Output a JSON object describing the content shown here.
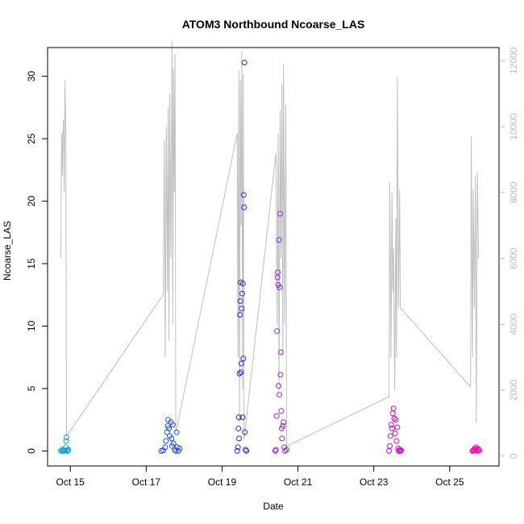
{
  "chart_data": {
    "type": "scatter",
    "title": "ATOM3 Northbound Ncoarse_LAS",
    "xlabel": "Date",
    "ylabel": "Ncoarse_LAS",
    "x_ticks": [
      {
        "label": "Oct 15",
        "day": 15
      },
      {
        "label": "Oct 17",
        "day": 17
      },
      {
        "label": "Oct 19",
        "day": 19
      },
      {
        "label": "Oct 21",
        "day": 21
      },
      {
        "label": "Oct 23",
        "day": 23
      },
      {
        "label": "Oct 25",
        "day": 25
      }
    ],
    "xlim": [
      14.4,
      26.3
    ],
    "ylim": [
      -1.2,
      32.3
    ],
    "yticks": [
      0,
      5,
      10,
      15,
      20,
      25,
      30
    ],
    "y2lim": [
      -300,
      12400
    ],
    "y2ticks": [
      0,
      2000,
      4000,
      6000,
      8000,
      10000,
      12000
    ],
    "secondary_line_color": "#bebebe",
    "series": [
      {
        "color": "#0ea5e0",
        "points": [
          [
            14.75,
            0.0
          ],
          [
            14.78,
            0.05
          ],
          [
            14.8,
            0.1
          ],
          [
            14.82,
            0.0
          ],
          [
            14.84,
            0.02
          ],
          [
            14.86,
            0.05
          ],
          [
            14.88,
            0.3
          ],
          [
            14.89,
            0.8
          ],
          [
            14.9,
            1.1
          ],
          [
            14.91,
            0.0
          ],
          [
            14.92,
            0.05
          ],
          [
            14.93,
            0.0
          ],
          [
            14.95,
            0.1
          ]
        ]
      },
      {
        "color": "#1a4ef0",
        "points": [
          [
            17.4,
            0.0
          ],
          [
            17.45,
            0.05
          ],
          [
            17.5,
            0.3
          ],
          [
            17.52,
            0.8
          ],
          [
            17.55,
            1.5
          ],
          [
            17.57,
            2.0
          ],
          [
            17.58,
            2.5
          ],
          [
            17.6,
            1.8
          ],
          [
            17.62,
            1.2
          ],
          [
            17.65,
            2.3
          ],
          [
            17.67,
            1.0
          ],
          [
            17.68,
            0.4
          ],
          [
            17.7,
            2.1
          ],
          [
            17.72,
            0.6
          ],
          [
            17.75,
            0.1
          ],
          [
            17.78,
            0.0
          ],
          [
            17.8,
            1.5
          ],
          [
            17.82,
            0.3
          ],
          [
            17.85,
            0.0
          ],
          [
            17.88,
            0.2
          ]
        ]
      },
      {
        "color": "#2a2ae0",
        "points": [
          [
            19.4,
            0.0
          ],
          [
            19.42,
            0.3
          ],
          [
            19.43,
            1.8
          ],
          [
            19.44,
            2.7
          ],
          [
            19.45,
            1.0
          ],
          [
            19.46,
            6.2
          ],
          [
            19.47,
            10.9
          ],
          [
            19.48,
            12.0
          ],
          [
            19.49,
            13.5
          ],
          [
            19.5,
            6.3
          ],
          [
            19.51,
            7.0
          ],
          [
            19.52,
            11.4
          ],
          [
            19.53,
            12.6
          ],
          [
            19.54,
            2.7
          ],
          [
            19.55,
            13.4
          ],
          [
            19.56,
            7.4
          ],
          [
            19.57,
            20.5
          ],
          [
            19.58,
            19.5
          ],
          [
            19.59,
            31.1
          ],
          [
            19.6,
            1.5
          ],
          [
            19.62,
            0.1
          ],
          [
            19.64,
            0.0
          ]
        ]
      },
      {
        "color": "#8a2be2",
        "points": [
          [
            20.4,
            0.0
          ],
          [
            20.42,
            0.1
          ],
          [
            20.44,
            2.8
          ],
          [
            20.45,
            9.6
          ],
          [
            20.46,
            13.9
          ],
          [
            20.47,
            14.3
          ],
          [
            20.48,
            13.3
          ],
          [
            20.49,
            5.2
          ],
          [
            20.5,
            16.9
          ],
          [
            20.51,
            4.5
          ],
          [
            20.52,
            13.1
          ],
          [
            20.53,
            19.0
          ],
          [
            20.54,
            6.1
          ],
          [
            20.55,
            7.9
          ],
          [
            20.56,
            3.2
          ],
          [
            20.57,
            1.8
          ],
          [
            20.58,
            1.0
          ],
          [
            20.6,
            2.0
          ],
          [
            20.62,
            2.3
          ],
          [
            20.64,
            0.3
          ],
          [
            20.66,
            0.0
          ],
          [
            20.7,
            0.1
          ]
        ]
      },
      {
        "color": "#d400d4",
        "points": [
          [
            23.4,
            0.0
          ],
          [
            23.42,
            0.4
          ],
          [
            23.44,
            1.2
          ],
          [
            23.46,
            2.1
          ],
          [
            23.48,
            1.8
          ],
          [
            23.5,
            3.0
          ],
          [
            23.52,
            3.4
          ],
          [
            23.54,
            2.6
          ],
          [
            23.56,
            1.4
          ],
          [
            23.58,
            2.5
          ],
          [
            23.6,
            0.8
          ],
          [
            23.62,
            1.9
          ],
          [
            23.64,
            0.2
          ],
          [
            23.66,
            0.0
          ],
          [
            23.68,
            0.1
          ],
          [
            23.7,
            0.0
          ],
          [
            23.72,
            0.05
          ]
        ]
      },
      {
        "color": "#ff00aa",
        "points": [
          [
            25.6,
            0.0
          ],
          [
            25.62,
            0.05
          ],
          [
            25.64,
            0.1
          ],
          [
            25.66,
            0.2
          ],
          [
            25.68,
            0.05
          ],
          [
            25.7,
            0.3
          ],
          [
            25.72,
            0.1
          ],
          [
            25.74,
            0.0
          ],
          [
            25.76,
            0.15
          ],
          [
            25.78,
            0.05
          ]
        ]
      }
    ],
    "secondary_line": [
      [
        14.75,
        6000
      ],
      [
        14.77,
        9800
      ],
      [
        14.79,
        8500
      ],
      [
        14.8,
        9600
      ],
      [
        14.82,
        10200
      ],
      [
        14.84,
        8000
      ],
      [
        14.86,
        11400
      ],
      [
        14.88,
        9900
      ],
      [
        14.9,
        600
      ],
      [
        17.45,
        4900
      ],
      [
        17.48,
        9600
      ],
      [
        17.5,
        3000
      ],
      [
        17.53,
        10000
      ],
      [
        17.56,
        5000
      ],
      [
        17.58,
        10600
      ],
      [
        17.6,
        3500
      ],
      [
        17.62,
        11000
      ],
      [
        17.65,
        6000
      ],
      [
        17.68,
        12600
      ],
      [
        17.7,
        4000
      ],
      [
        17.72,
        11800
      ],
      [
        17.74,
        8000
      ],
      [
        17.76,
        12200
      ],
      [
        17.78,
        700
      ],
      [
        19.4,
        9800
      ],
      [
        19.42,
        3000
      ],
      [
        19.44,
        11700
      ],
      [
        19.46,
        1000
      ],
      [
        19.48,
        11400
      ],
      [
        19.5,
        7000
      ],
      [
        19.52,
        12300
      ],
      [
        19.54,
        2000
      ],
      [
        19.56,
        11600
      ],
      [
        19.58,
        500
      ],
      [
        20.42,
        9200
      ],
      [
        20.45,
        4000
      ],
      [
        20.48,
        9800
      ],
      [
        20.5,
        2000
      ],
      [
        20.53,
        10500
      ],
      [
        20.55,
        6000
      ],
      [
        20.58,
        11300
      ],
      [
        20.6,
        3000
      ],
      [
        20.62,
        11900
      ],
      [
        20.65,
        4000
      ],
      [
        20.68,
        10700
      ],
      [
        20.7,
        300
      ],
      [
        23.4,
        1800
      ],
      [
        23.42,
        8300
      ],
      [
        23.45,
        3000
      ],
      [
        23.48,
        8000
      ],
      [
        23.5,
        5000
      ],
      [
        23.52,
        6300
      ],
      [
        23.55,
        2000
      ],
      [
        23.58,
        7200
      ],
      [
        23.6,
        3000
      ],
      [
        23.62,
        11500
      ],
      [
        23.65,
        4500
      ],
      [
        23.68,
        8100
      ],
      [
        23.7,
        4500
      ],
      [
        25.55,
        2100
      ],
      [
        25.57,
        9700
      ],
      [
        25.6,
        3000
      ],
      [
        25.62,
        8100
      ],
      [
        25.65,
        4500
      ],
      [
        25.68,
        8500
      ],
      [
        25.7,
        1000
      ],
      [
        25.73,
        8600
      ],
      [
        25.76,
        6000
      ]
    ]
  }
}
